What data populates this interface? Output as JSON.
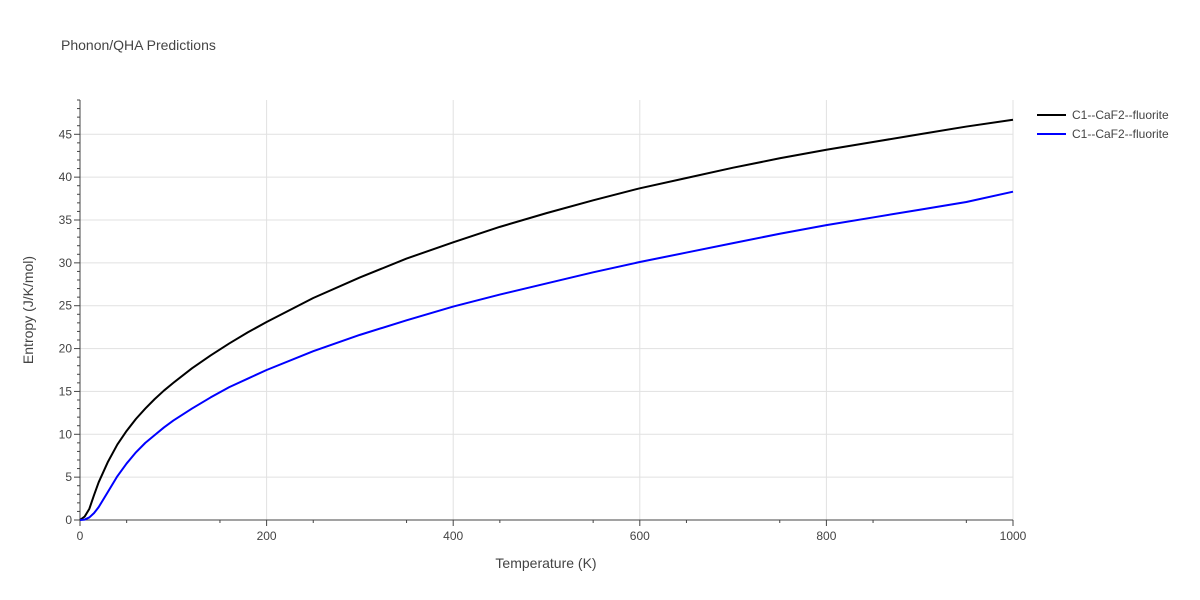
{
  "chart_data": {
    "type": "line",
    "title": "Phonon/QHA Predictions",
    "xlabel": "Temperature (K)",
    "ylabel": "Entropy (J/K/mol)",
    "xlim": [
      0,
      1000
    ],
    "ylim": [
      0,
      49
    ],
    "x_ticks": [
      0,
      200,
      400,
      600,
      800,
      1000
    ],
    "y_ticks": [
      0,
      5,
      10,
      15,
      20,
      25,
      30,
      35,
      40,
      45
    ],
    "grid": true,
    "legend_position": "top-right",
    "series": [
      {
        "name": "C1--CaF2--fluorite",
        "color": "#000000",
        "x": [
          0,
          5,
          10,
          15,
          20,
          30,
          40,
          50,
          60,
          70,
          80,
          90,
          100,
          120,
          140,
          160,
          180,
          200,
          250,
          300,
          350,
          400,
          450,
          500,
          550,
          600,
          650,
          700,
          750,
          800,
          850,
          900,
          950,
          1000
        ],
        "y": [
          0,
          0.4,
          1.3,
          2.9,
          4.4,
          6.8,
          8.8,
          10.4,
          11.8,
          13.0,
          14.1,
          15.1,
          16.0,
          17.7,
          19.2,
          20.6,
          21.9,
          23.1,
          25.9,
          28.3,
          30.5,
          32.4,
          34.2,
          35.8,
          37.3,
          38.7,
          39.9,
          41.1,
          42.2,
          43.2,
          44.1,
          45.0,
          45.9,
          46.7
        ]
      },
      {
        "name": "C1--CaF2--fluorite",
        "color": "#0000ff",
        "x": [
          0,
          5,
          10,
          15,
          20,
          30,
          40,
          50,
          60,
          70,
          80,
          90,
          100,
          120,
          140,
          160,
          180,
          200,
          250,
          300,
          350,
          400,
          450,
          500,
          550,
          600,
          650,
          700,
          750,
          800,
          850,
          900,
          950,
          1000
        ],
        "y": [
          0,
          0.05,
          0.3,
          0.8,
          1.5,
          3.3,
          5.1,
          6.6,
          7.9,
          9.0,
          9.9,
          10.8,
          11.6,
          13.0,
          14.3,
          15.5,
          16.5,
          17.5,
          19.7,
          21.6,
          23.3,
          24.9,
          26.3,
          27.6,
          28.9,
          30.1,
          31.2,
          32.3,
          33.4,
          34.4,
          35.3,
          36.2,
          37.1,
          38.3
        ]
      }
    ]
  }
}
